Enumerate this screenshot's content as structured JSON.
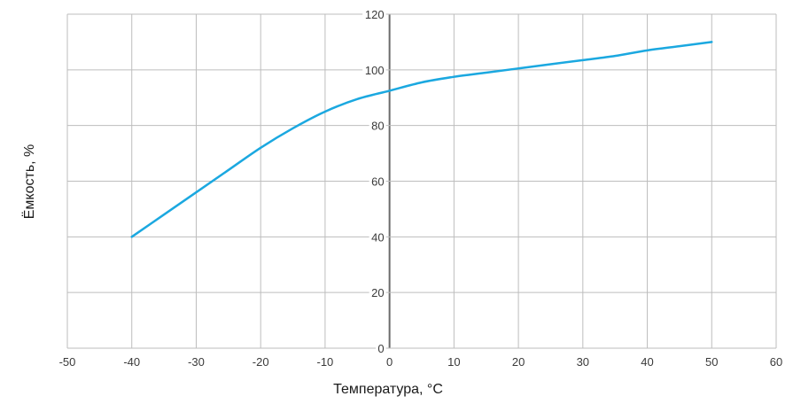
{
  "chart_data": {
    "type": "line",
    "title": "",
    "xlabel": "Температура, °С",
    "ylabel": "Ёмкость, %",
    "xlim": [
      -50,
      60
    ],
    "ylim": [
      0,
      120
    ],
    "x_ticks": [
      -50,
      -40,
      -30,
      -20,
      -10,
      0,
      10,
      20,
      30,
      40,
      50,
      60
    ],
    "y_ticks": [
      0,
      20,
      40,
      60,
      80,
      100,
      120
    ],
    "x_tick_labels": [
      "-50",
      "-40",
      "-30",
      "-20",
      "-10",
      "0",
      "10",
      "20",
      "30",
      "40",
      "50",
      "60"
    ],
    "y_tick_labels": [
      "0",
      "20",
      "40",
      "60",
      "80",
      "100",
      "120"
    ],
    "grid": true,
    "legend": "none",
    "colors": {
      "line": "#1ba8e0",
      "grid": "#bdbdbd",
      "zero_axis": "#6b6b6b",
      "text": "#3a3a3a"
    },
    "series": [
      {
        "x": [
          -40,
          -35,
          -30,
          -25,
          -20,
          -15,
          -10,
          -5,
          0,
          5,
          10,
          15,
          20,
          25,
          30,
          35,
          40,
          45,
          50
        ],
        "values": [
          40,
          48,
          56,
          64,
          72,
          79,
          85,
          89.5,
          92.5,
          95.5,
          97.5,
          99,
          100.5,
          102,
          103.5,
          105,
          107,
          108.5,
          110
        ]
      }
    ]
  }
}
